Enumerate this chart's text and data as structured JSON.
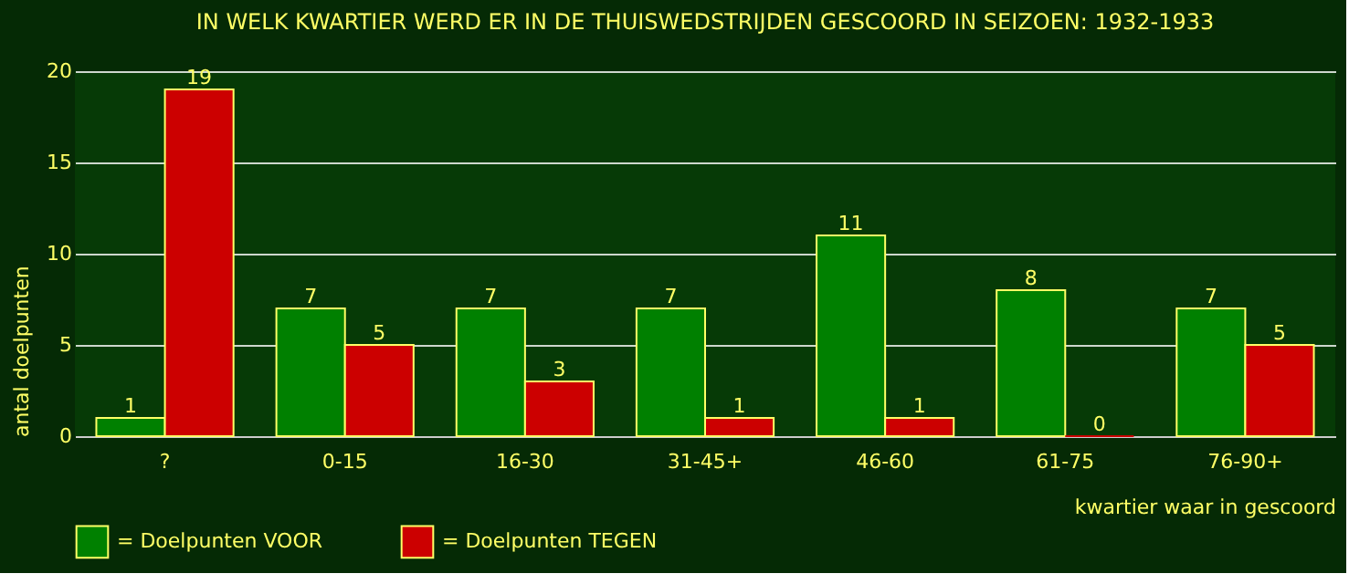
{
  "chart_data": {
    "type": "bar",
    "title": "IN WELK KWARTIER WERD ER IN DE THUISWEDSTRIJDEN GESCOORD IN SEIZOEN: 1932-1933",
    "xlabel": "kwartier waar in gescoord",
    "ylabel": "antal doelpunten",
    "categories": [
      "?",
      "0-15",
      "16-30",
      "31-45+",
      "46-60",
      "61-75",
      "76-90+"
    ],
    "series": [
      {
        "name": "= Doelpunten VOOR",
        "color": "#008000",
        "values": [
          1,
          7,
          7,
          7,
          11,
          8,
          7
        ]
      },
      {
        "name": "= Doelpunten TEGEN",
        "color": "#cc0000",
        "values": [
          19,
          5,
          3,
          1,
          1,
          0,
          5
        ]
      }
    ],
    "ylim": [
      0,
      20
    ],
    "yticks": [
      0,
      5,
      10,
      15,
      20
    ],
    "grid": "y",
    "legend": "bottom",
    "data_labels": true
  }
}
